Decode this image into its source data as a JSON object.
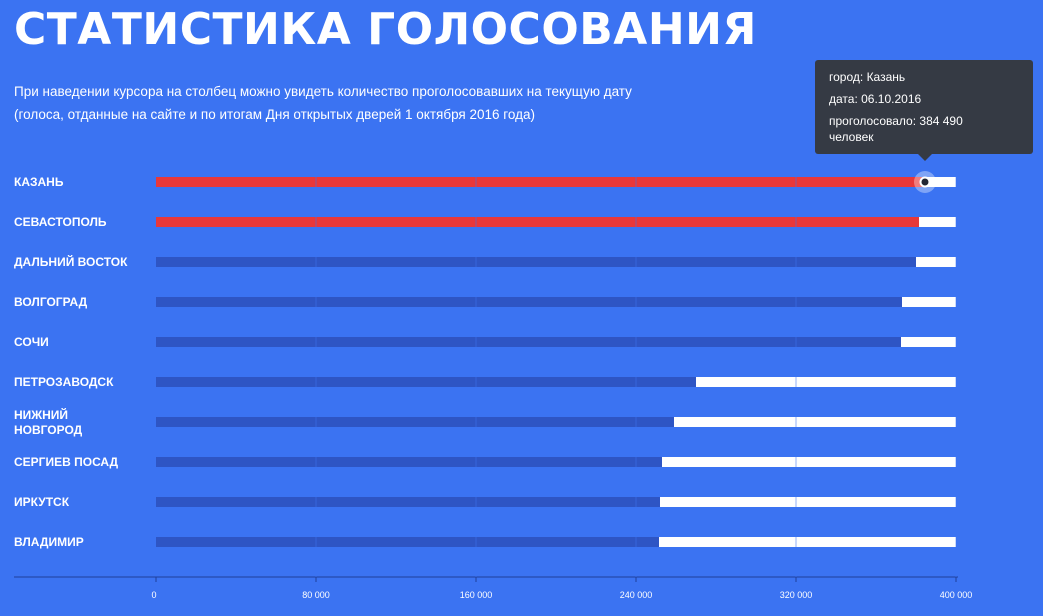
{
  "page": {
    "title": "СТАТИСТИКА ГОЛОСОВАНИЯ",
    "subtitle_line1": "При наведении курсора на столбец можно увидеть количество проголосовавших на текущую дату",
    "subtitle_line2": "(голоса, отданные на сайте и по итогам Дня открытых дверей 1 октября 2016 года)"
  },
  "tooltip": {
    "city_label": "город:",
    "city": "Казань",
    "date_label": "дата:",
    "date": "06.10.2016",
    "votes_label": "проголосовало:",
    "votes": "384 490",
    "unit": "человек"
  },
  "colors": {
    "background": "#3b73f2",
    "bar_highlight": "#e8383a",
    "bar_normal": "#2e55c4",
    "track": "#ffffff",
    "tooltip_bg": "#353a44"
  },
  "chart_data": {
    "type": "bar",
    "orientation": "horizontal",
    "categories": [
      [
        "КАЗАНЬ"
      ],
      [
        "СЕВАСТОПОЛЬ"
      ],
      [
        "ДАЛЬНИЙ ВОСТОК"
      ],
      [
        "ВОЛГОГРАД"
      ],
      [
        "СОЧИ"
      ],
      [
        "ПЕТРОЗАВОДСК"
      ],
      [
        "НИЖНИЙ",
        "НОВГОРОД"
      ],
      [
        "СЕРГИЕВ ПОСАД"
      ],
      [
        "ИРКУТСК"
      ],
      [
        "ВЛАДИМИР"
      ]
    ],
    "values": [
      384490,
      381500,
      380000,
      373000,
      372500,
      270000,
      259000,
      253000,
      252000,
      251500
    ],
    "highlighted": [
      true,
      true,
      false,
      false,
      false,
      false,
      false,
      false,
      false,
      false
    ],
    "xlim": [
      0,
      400000
    ],
    "ticks": [
      0,
      80000,
      160000,
      240000,
      320000,
      400000
    ],
    "tick_labels": [
      "0",
      "80 000",
      "160 000",
      "240 000",
      "320 000",
      "400 000"
    ],
    "hovered_index": 0,
    "grid": "vertical"
  }
}
